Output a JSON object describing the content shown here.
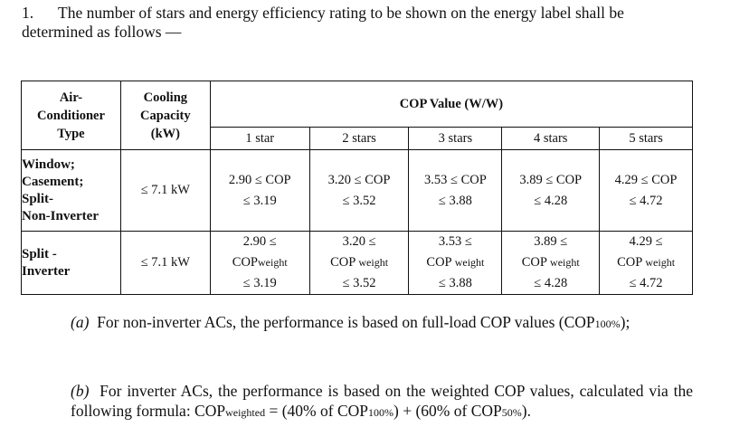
{
  "intro": {
    "number": "1.",
    "text": "The number of stars and energy efficiency rating to be shown on the energy label shall be determined as follows —"
  },
  "table": {
    "headers": {
      "type": "Air-\nConditioner\nType",
      "capacity": "Cooling\nCapacity\n(kW)",
      "cop": "COP Value (W/W)",
      "stars": [
        "1 star",
        "2 stars",
        "3 stars",
        "4 stars",
        "5 stars"
      ]
    },
    "rows": [
      {
        "type": [
          "Window;",
          "Casement;",
          "Split-",
          "Non-Inverter"
        ],
        "capacity": "≤ 7.1 kW",
        "values": [
          [
            "2.90 ≤ COP",
            "≤ 3.19"
          ],
          [
            "3.20 ≤ COP",
            "≤ 3.52"
          ],
          [
            "3.53 ≤ COP",
            "≤ 3.88"
          ],
          [
            "3.89 ≤ COP",
            "≤ 4.28"
          ],
          [
            "4.29 ≤ COP",
            "≤ 4.72"
          ]
        ]
      },
      {
        "type": [
          "Split -",
          "Inverter"
        ],
        "capacity": "≤ 7.1 kW",
        "values": [
          [
            "2.90 ≤",
            "COP",
            "weight",
            "≤ 3.19"
          ],
          [
            "3.20 ≤",
            "COP ",
            "weight",
            "≤ 3.52"
          ],
          [
            "3.53 ≤",
            "COP ",
            "weight",
            "≤ 3.88"
          ],
          [
            "3.89 ≤",
            "COP ",
            "weight",
            "≤ 4.28"
          ],
          [
            "4.29 ≤",
            "COP ",
            "weight",
            "≤ 4.72"
          ]
        ]
      }
    ]
  },
  "notes": {
    "a": {
      "label": "(a)",
      "text": "For non-inverter ACs, the performance is based on full-load COP values (COP",
      "sub": "100%",
      "end": ");"
    },
    "b": {
      "label": "(b)",
      "text": "For inverter ACs, the performance is based on the weighted COP values, calculated via the following formula: COP",
      "sub1": "weighted",
      "mid": " = (40% of COP",
      "sub2": "100%",
      "mid2": ") + (60% of COP",
      "sub3": "50%",
      "end": ")."
    }
  }
}
